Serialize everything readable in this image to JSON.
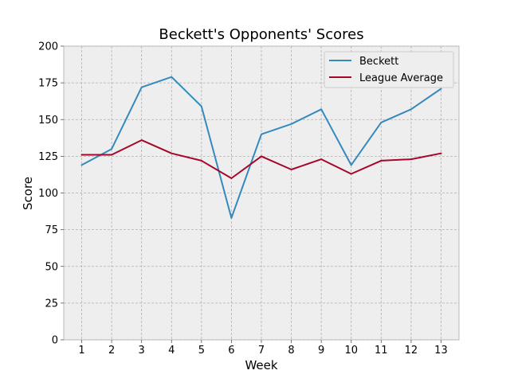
{
  "chart_data": {
    "type": "line",
    "title": "Beckett's Opponents' Scores",
    "xlabel": "Week",
    "ylabel": "Score",
    "x": [
      1,
      2,
      3,
      4,
      5,
      6,
      7,
      8,
      9,
      10,
      11,
      12,
      13
    ],
    "xlim": [
      0.4,
      13.6
    ],
    "ylim": [
      0,
      200
    ],
    "yticks": [
      0,
      25,
      50,
      75,
      100,
      125,
      150,
      175,
      200
    ],
    "grid": true,
    "legend_position": "top-right",
    "background": "#eeeeee",
    "series": [
      {
        "name": "Beckett",
        "color": "#348abd",
        "values": [
          119,
          130,
          172,
          179,
          159,
          83,
          140,
          147,
          157,
          119,
          148,
          157,
          171
        ]
      },
      {
        "name": "League Average",
        "color": "#a60628",
        "values": [
          126,
          126,
          136,
          127,
          122,
          110,
          125,
          116,
          123,
          113,
          122,
          123,
          127
        ]
      }
    ]
  }
}
